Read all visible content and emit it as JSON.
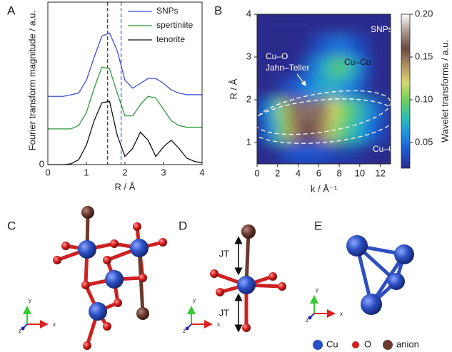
{
  "chart_data": [
    {
      "type": "line",
      "panel_label": "A",
      "x_label": "R / Å",
      "y_label": "Fourier transform magnitude / a.u.",
      "x": [
        0,
        0.2,
        0.4,
        0.6,
        0.8,
        1.0,
        1.2,
        1.4,
        1.6,
        1.8,
        2.0,
        2.2,
        2.4,
        2.6,
        2.8,
        3.0,
        3.2,
        3.4,
        3.6,
        3.8,
        4.0
      ],
      "series": [
        {
          "name": "SNPs",
          "color": "#3d4fd6",
          "values": [
            0.42,
            0.42,
            0.42,
            0.43,
            0.44,
            0.52,
            0.66,
            0.79,
            0.81,
            0.7,
            0.52,
            0.47,
            0.5,
            0.53,
            0.53,
            0.5,
            0.46,
            0.44,
            0.43,
            0.43,
            0.43
          ]
        },
        {
          "name": "spertiniite",
          "color": "#2e9a3a",
          "values": [
            0.22,
            0.22,
            0.22,
            0.22,
            0.24,
            0.32,
            0.47,
            0.6,
            0.59,
            0.44,
            0.3,
            0.3,
            0.37,
            0.42,
            0.41,
            0.34,
            0.27,
            0.24,
            0.23,
            0.23,
            0.23
          ]
        },
        {
          "name": "tenorite",
          "color": "#111111",
          "values": [
            0,
            0,
            0,
            0.005,
            0.03,
            0.12,
            0.27,
            0.38,
            0.39,
            0.18,
            0.05,
            0.1,
            0.2,
            0.15,
            0.05,
            0.11,
            0.15,
            0.1,
            0.04,
            0.02,
            0.01
          ]
        }
      ],
      "xlim": [
        0,
        4
      ],
      "ylim": [
        0,
        1
      ],
      "xticks": [
        0,
        1,
        2,
        3,
        4
      ],
      "yticks": [
        0
      ],
      "reference_lines": [
        {
          "x": 1.55,
          "color": "#333333"
        },
        {
          "x": 1.9,
          "color": "#3d4fd6"
        }
      ],
      "legend": "upper right"
    },
    {
      "type": "heatmap",
      "panel_label": "B",
      "x_label": "k / Å⁻¹",
      "y_label": "R / Å",
      "colorbar_label": "Wavelet transforms / a.u.",
      "annotations": [
        "SNPs",
        "Cu–Cu",
        "Cu–O",
        "Jahn–Teller",
        "Cu–O"
      ],
      "x": [
        0.5,
        1.5,
        2.5,
        3.5,
        4.5,
        5.5,
        6.5,
        7.5,
        8.5,
        9.5,
        10.5,
        11.5,
        12.5
      ],
      "y": [
        3.75,
        3.25,
        2.75,
        2.25,
        1.75,
        1.25,
        0.75
      ],
      "z": [
        [
          0.02,
          0.02,
          0.02,
          0.02,
          0.02,
          0.02,
          0.02,
          0.02,
          0.02,
          0.02,
          0.02,
          0.02,
          0.02
        ],
        [
          0.02,
          0.02,
          0.02,
          0.02,
          0.02,
          0.03,
          0.04,
          0.05,
          0.05,
          0.04,
          0.03,
          0.02,
          0.02
        ],
        [
          0.02,
          0.02,
          0.02,
          0.02,
          0.03,
          0.05,
          0.07,
          0.09,
          0.09,
          0.07,
          0.04,
          0.02,
          0.02
        ],
        [
          0.02,
          0.02,
          0.03,
          0.04,
          0.05,
          0.06,
          0.07,
          0.07,
          0.06,
          0.05,
          0.03,
          0.02,
          0.02
        ],
        [
          0.04,
          0.07,
          0.11,
          0.15,
          0.17,
          0.17,
          0.15,
          0.12,
          0.1,
          0.09,
          0.07,
          0.05,
          0.03
        ],
        [
          0.03,
          0.06,
          0.1,
          0.14,
          0.16,
          0.16,
          0.14,
          0.11,
          0.09,
          0.08,
          0.06,
          0.04,
          0.03
        ],
        [
          0.02,
          0.02,
          0.03,
          0.04,
          0.04,
          0.04,
          0.04,
          0.03,
          0.03,
          0.03,
          0.02,
          0.02,
          0.02
        ]
      ],
      "xlim": [
        0,
        13
      ],
      "ylim": [
        0.5,
        4
      ],
      "xticks": [
        0,
        2,
        4,
        6,
        8,
        10,
        12
      ],
      "yticks": [
        1,
        2,
        3,
        4
      ],
      "clim": [
        0.02,
        0.2
      ],
      "cticks": [
        0.05,
        {
          "value": 0.1,
          "label": "0.10"
        },
        0.15,
        {
          "value": 0.2,
          "label": "0.20"
        }
      ],
      "colormap": [
        "#2a2c8c",
        "#1c55cf",
        "#1e90e0",
        "#2cc0b0",
        "#6fd05a",
        "#d8d870",
        "#b09060",
        "#6a4a44",
        "#a89890",
        "#ffffff"
      ]
    }
  ],
  "panels": [
    {
      "label": "C",
      "axes": [
        "x",
        "y",
        "z"
      ]
    },
    {
      "label": "D",
      "axes": [
        "x",
        "y",
        "z"
      ],
      "annotations": [
        "JT",
        "JT"
      ]
    },
    {
      "label": "E",
      "axes": [
        "x",
        "y",
        "z"
      ]
    }
  ],
  "legend": [
    {
      "name": "Cu",
      "color": "#2b4fc4"
    },
    {
      "name": "O",
      "color": "#d81f1f"
    },
    {
      "name": "anion",
      "color": "#6b3a2e"
    }
  ]
}
